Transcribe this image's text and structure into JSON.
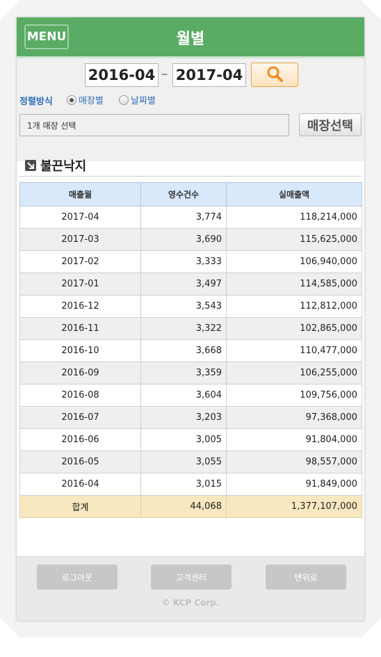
{
  "header": {
    "menu_label": "MENU",
    "title": "월별"
  },
  "filter": {
    "date_from": "2016-04",
    "date_to": "2017-04",
    "separator": "~",
    "sort_label": "정렬방식",
    "sort_options": [
      {
        "label": "매장별",
        "selected": true
      },
      {
        "label": "날짜별",
        "selected": false
      }
    ],
    "store_value": "1개 매장 선택",
    "store_button": "매장선택"
  },
  "section": {
    "title": "불끈낙지"
  },
  "table": {
    "headers": [
      "매출월",
      "영수건수",
      "실매출액"
    ],
    "rows": [
      [
        "2017-04",
        "3,774",
        "118,214,000"
      ],
      [
        "2017-03",
        "3,690",
        "115,625,000"
      ],
      [
        "2017-02",
        "3,333",
        "106,940,000"
      ],
      [
        "2017-01",
        "3,497",
        "114,585,000"
      ],
      [
        "2016-12",
        "3,543",
        "112,812,000"
      ],
      [
        "2016-11",
        "3,322",
        "102,865,000"
      ],
      [
        "2016-10",
        "3,668",
        "110,477,000"
      ],
      [
        "2016-09",
        "3,359",
        "106,255,000"
      ],
      [
        "2016-08",
        "3,604",
        "109,756,000"
      ],
      [
        "2016-07",
        "3,203",
        "97,368,000"
      ],
      [
        "2016-06",
        "3,005",
        "91,804,000"
      ],
      [
        "2016-05",
        "3,055",
        "98,557,000"
      ],
      [
        "2016-04",
        "3,015",
        "91,849,000"
      ]
    ],
    "total": [
      "합계",
      "44,068",
      "1,377,107,000"
    ]
  },
  "footer": {
    "logout": "로그아웃",
    "support": "고객센터",
    "top": "맨위로",
    "copyright": "© KCP Corp."
  },
  "colors": {
    "header_green": "#5aab63",
    "table_header": "#d9e8fb",
    "total_row": "#f8e8c0",
    "link_blue": "#2f6fb8",
    "search_orange": "#e4a23a"
  },
  "icons": {
    "search": "magnifier-icon",
    "section": "arrow-down-right-icon"
  }
}
